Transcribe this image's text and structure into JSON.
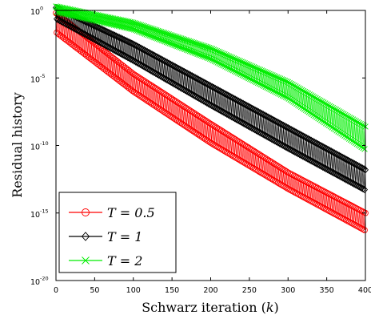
{
  "chart_data": {
    "type": "line",
    "xlabel": "Schwarz iteration (k)",
    "ylabel": "Residual history",
    "xlim": [
      0,
      400
    ],
    "ylim_log10": [
      -20,
      0
    ],
    "y_scale": "log",
    "x_ticks": [
      "0",
      "50",
      "100",
      "150",
      "200",
      "250",
      "300",
      "350",
      "400"
    ],
    "y_ticks": [
      {
        "base": "10",
        "exp": "0"
      },
      {
        "base": "10",
        "exp": "-5"
      },
      {
        "base": "10",
        "exp": "-10"
      },
      {
        "base": "10",
        "exp": "-15"
      },
      {
        "base": "10",
        "exp": "-20"
      }
    ],
    "grid": false,
    "legend_position": "bottom-left",
    "series": [
      {
        "name": "T = 0.5",
        "color": "#ff0000",
        "marker": "circle",
        "log10_upper": [
          [
            0,
            -0.2
          ],
          [
            100,
            -4.7
          ],
          [
            200,
            -8.4
          ],
          [
            300,
            -12.0
          ],
          [
            400,
            -15.0
          ]
        ],
        "log10_lower": [
          [
            0,
            -1.6
          ],
          [
            100,
            -6.0
          ],
          [
            200,
            -9.8
          ],
          [
            300,
            -13.2
          ],
          [
            400,
            -16.3
          ]
        ]
      },
      {
        "name": "T = 1",
        "color": "#000000",
        "marker": "diamond",
        "log10_upper": [
          [
            0,
            0.2
          ],
          [
            100,
            -2.5
          ],
          [
            200,
            -5.6
          ],
          [
            300,
            -8.7
          ],
          [
            400,
            -11.8
          ]
        ],
        "log10_lower": [
          [
            0,
            -0.6
          ],
          [
            100,
            -3.7
          ],
          [
            200,
            -7.0
          ],
          [
            300,
            -10.2
          ],
          [
            400,
            -13.3
          ]
        ]
      },
      {
        "name": "T = 2",
        "color": "#00ee00",
        "marker": "x",
        "log10_upper": [
          [
            0,
            0.3
          ],
          [
            100,
            -0.9
          ],
          [
            200,
            -2.8
          ],
          [
            300,
            -5.3
          ],
          [
            400,
            -8.6
          ]
        ],
        "log10_lower": [
          [
            0,
            -0.1
          ],
          [
            100,
            -1.4
          ],
          [
            200,
            -3.6
          ],
          [
            300,
            -6.5
          ],
          [
            400,
            -10.3
          ]
        ]
      }
    ]
  }
}
